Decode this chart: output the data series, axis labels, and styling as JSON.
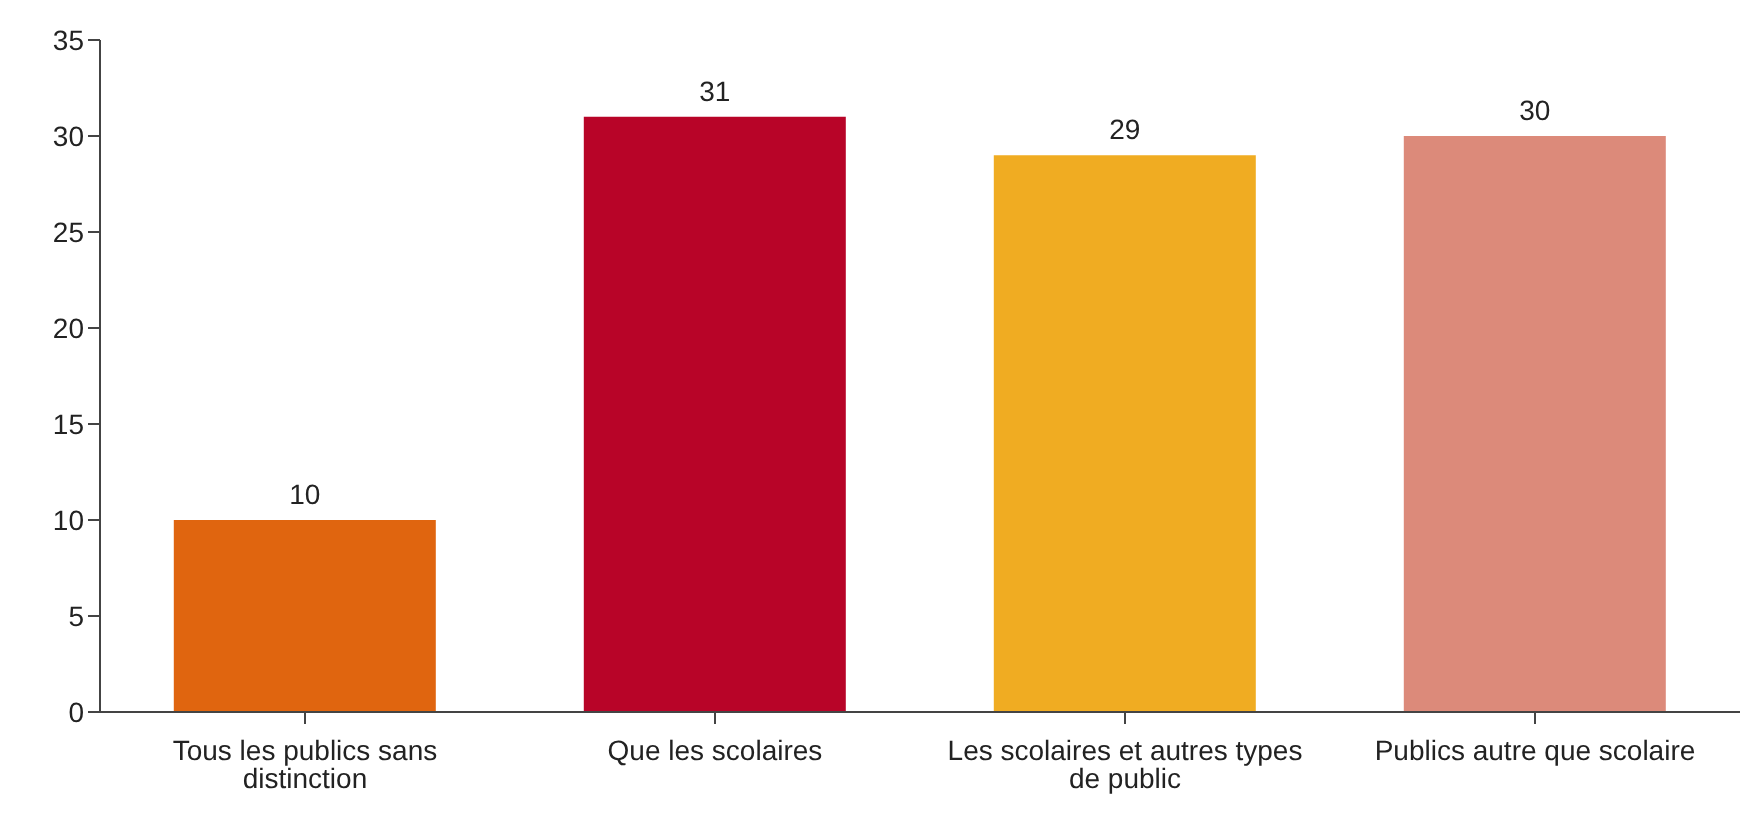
{
  "chart_data": {
    "type": "bar",
    "categories": [
      "Tous les publics sans distinction",
      "Que les scolaires",
      "Les scolaires et autres types de public",
      "Publics autre que scolaire"
    ],
    "values": [
      10,
      31,
      29,
      30
    ],
    "colors": [
      "#e0650f",
      "#b80428",
      "#f0ac22",
      "#dc8a7a"
    ],
    "ylim": [
      0,
      35
    ],
    "yticks": [
      0,
      5,
      10,
      15,
      20,
      25,
      30,
      35
    ],
    "data_labels": true
  }
}
